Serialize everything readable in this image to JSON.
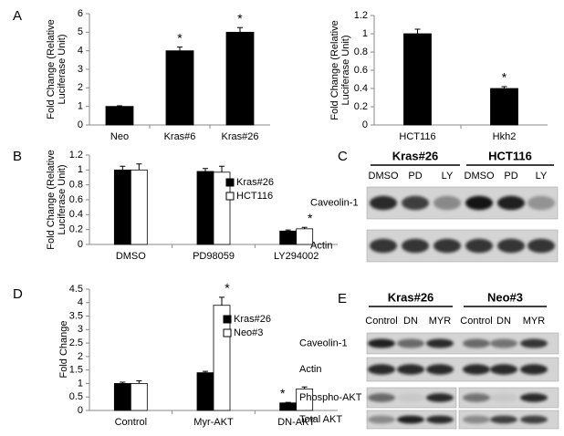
{
  "chart_data": [
    {
      "type": "bar",
      "label": "A",
      "ylabel": "Fold Change (Relative Luciferase Unit)",
      "categories": [
        "Neo",
        "Kras#6",
        "Kras#26"
      ],
      "values": [
        1.0,
        4.0,
        5.0
      ],
      "errors": [
        0.03,
        0.2,
        0.25
      ],
      "significance": [
        null,
        "*",
        "*"
      ],
      "color": "#000000",
      "ylim": [
        0,
        6
      ],
      "yticks": [
        0,
        1,
        2,
        3,
        4,
        5,
        6
      ]
    },
    {
      "type": "bar",
      "ylabel": "Fold Change (Relative Luciferase Unit)",
      "categories": [
        "HCT116",
        "Hkh2"
      ],
      "values": [
        1.0,
        0.4
      ],
      "errors": [
        0.05,
        0.02
      ],
      "significance": [
        null,
        "*"
      ],
      "color": "#000000",
      "ylim": [
        0,
        1.2
      ],
      "yticks": [
        0,
        0.2,
        0.4,
        0.6,
        0.8,
        1,
        1.2
      ]
    },
    {
      "type": "bar",
      "label": "B",
      "ylabel": "Fold Change (Relative Luciferase Unit)",
      "categories": [
        "DMSO",
        "PD98059",
        "LY294002"
      ],
      "series": [
        {
          "name": "Kras#26",
          "color": "#000000",
          "values": [
            1.0,
            0.98,
            0.18
          ],
          "errors": [
            0.05,
            0.04,
            0.015
          ],
          "significance": [
            null,
            null,
            null
          ]
        },
        {
          "name": "HCT116",
          "color": "#ffffff",
          "values": [
            1.0,
            0.97,
            0.21
          ],
          "errors": [
            0.08,
            0.08,
            0.02
          ],
          "significance": [
            null,
            null,
            "*"
          ]
        }
      ],
      "legend": "right",
      "ylim": [
        0,
        1.2
      ],
      "yticks": [
        0,
        0.2,
        0.4,
        0.6,
        0.8,
        1,
        1.2
      ]
    },
    {
      "type": "bar",
      "label": "D",
      "ylabel": "Fold Change",
      "categories": [
        "Control",
        "Myr-AKT",
        "DN-AKT"
      ],
      "series": [
        {
          "name": "Kras#26",
          "color": "#000000",
          "values": [
            1.0,
            1.4,
            0.28
          ],
          "errors": [
            0.05,
            0.05,
            0.02
          ],
          "significance": [
            null,
            null,
            "*"
          ]
        },
        {
          "name": "Neo#3",
          "color": "#ffffff",
          "values": [
            1.0,
            3.9,
            0.8
          ],
          "errors": [
            0.1,
            0.3,
            0.07
          ],
          "significance": [
            null,
            "*",
            null
          ]
        }
      ],
      "legend": "right",
      "ylim": [
        0,
        4.5
      ],
      "yticks": [
        0,
        0.5,
        1,
        1.5,
        2,
        2.5,
        3,
        3.5,
        4,
        4.5
      ]
    }
  ],
  "blots": [
    {
      "label": "C",
      "groups": [
        "Kras#26",
        "HCT116"
      ],
      "lanes": [
        "DMSO",
        "PD",
        "LY",
        "DMSO",
        "PD",
        "LY"
      ],
      "rows": [
        "Caveolin-1",
        "Actin"
      ]
    },
    {
      "label": "E",
      "groups": [
        "Kras#26",
        "Neo#3"
      ],
      "lanes": [
        "Control",
        "DN",
        "MYR",
        "Control",
        "DN",
        "MYR"
      ],
      "rows": [
        "Caveolin-1",
        "Actin",
        "Phospho-AKT",
        "Total AKT"
      ]
    }
  ]
}
